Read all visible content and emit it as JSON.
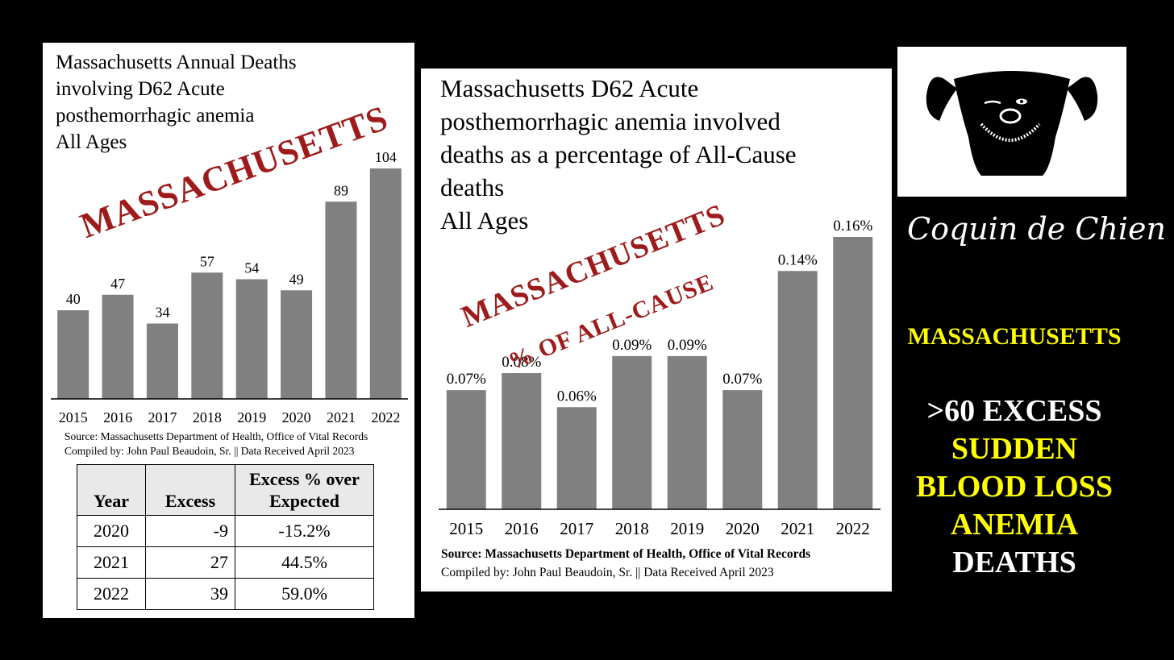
{
  "colors": {
    "bar": "#808080",
    "stamp": "#9e1b1b",
    "highlight": "#ffff00"
  },
  "chart_data": [
    {
      "type": "bar",
      "title": "Massachusetts Annual Deaths\ninvolving D62 Acute\nposthemorrhagic anemia\nAll Ages",
      "categories": [
        "2015",
        "2016",
        "2017",
        "2018",
        "2019",
        "2020",
        "2021",
        "2022"
      ],
      "values": [
        40,
        47,
        34,
        57,
        54,
        49,
        89,
        104
      ],
      "labels": [
        "40",
        "47",
        "34",
        "57",
        "54",
        "49",
        "89",
        "104"
      ],
      "ylim": [
        0,
        104
      ],
      "stamp": "MASSACHUSETTS",
      "source": "Source:  Massachusetts Department of Health, Office of Vital Records",
      "compiled": "Compiled by:  John Paul Beaudoin, Sr. || Data Received April 2023"
    },
    {
      "type": "bar",
      "title": "Massachusetts D62 Acute\nposthemorrhagic anemia involved\ndeaths as a percentage of All-Cause\ndeaths\nAll Ages",
      "categories": [
        "2015",
        "2016",
        "2017",
        "2018",
        "2019",
        "2020",
        "2021",
        "2022"
      ],
      "values": [
        0.07,
        0.08,
        0.06,
        0.09,
        0.09,
        0.07,
        0.14,
        0.16
      ],
      "labels": [
        "0.07%",
        "0.08%",
        "0.06%",
        "0.09%",
        "0.09%",
        "0.07%",
        "0.14%",
        "0.16%"
      ],
      "ylim": [
        0,
        0.16
      ],
      "stamp": "MASSACHUSETTS",
      "stamp_sub": "% OF ALL-CAUSE",
      "source": "Source:  Massachusetts Department of Health, Office of Vital Records",
      "compiled": "Compiled by:  John Paul Beaudoin, Sr. || Data Received April 2023"
    },
    {
      "type": "table",
      "headers": [
        "Year",
        "Excess",
        "Excess % over\nExpected"
      ],
      "rows": [
        [
          "2020",
          "-9",
          "-15.2%"
        ],
        [
          "2021",
          "27",
          "44.5%"
        ],
        [
          "2022",
          "39",
          "59.0%"
        ]
      ]
    }
  ],
  "logo": {
    "icon": "dog-face-icon"
  },
  "brand": "Coquin de Chien",
  "sidebar": {
    "state": "MASSACHUSETTS",
    "line1": ">60 EXCESS",
    "line2": "SUDDEN",
    "line3": "BLOOD LOSS",
    "line4": "ANEMIA",
    "line5": "DEATHS"
  }
}
